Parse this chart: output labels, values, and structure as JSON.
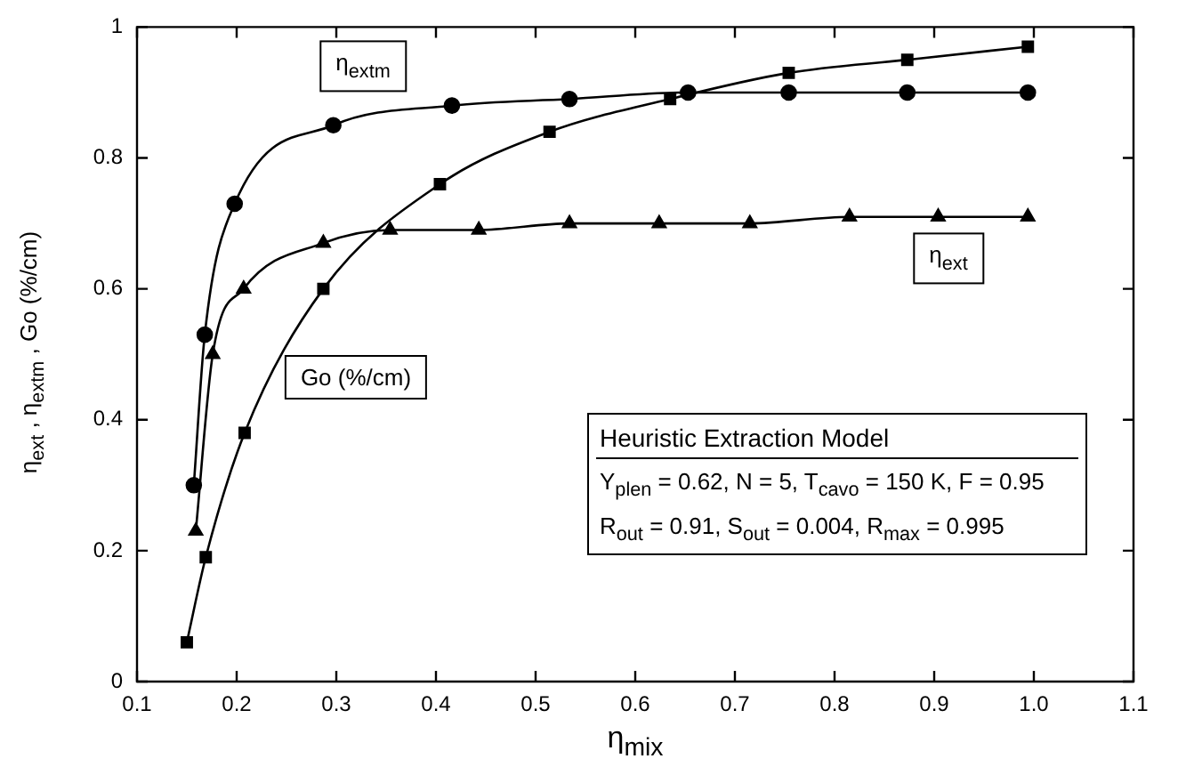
{
  "chart_data": {
    "type": "line",
    "xlabel": "η$_{mix}$",
    "ylabel": "η$_{ext}$ , η$_{extm}$ , Go (%/cm)",
    "xlim": [
      0.1,
      1.1
    ],
    "xticks": [
      0.1,
      0.2,
      0.3,
      0.4,
      0.5,
      0.6,
      0.7,
      0.8,
      0.9,
      {
        "value": 1,
        "label": "1.0"
      },
      1.1
    ],
    "ylim": [
      0,
      1
    ],
    "yticks": [
      0,
      0.2,
      0.4,
      0.6,
      0.8,
      1
    ],
    "grid": false,
    "line_style": "solid",
    "series": [
      {
        "name": "η$_{extm}$",
        "color": "#000000",
        "marker": "circle",
        "x": [
          0.157,
          0.168,
          0.198,
          0.297,
          0.416,
          0.534,
          0.653,
          0.754,
          0.873,
          0.994
        ],
        "values": [
          0.3,
          0.53,
          0.73,
          0.85,
          0.88,
          0.89,
          0.9,
          0.9,
          0.9,
          0.9
        ]
      },
      {
        "name": "Go (%/cm)",
        "color": "#000000",
        "marker": "square",
        "x": [
          0.15,
          0.169,
          0.208,
          0.287,
          0.404,
          0.514,
          0.635,
          0.754,
          0.873,
          0.994
        ],
        "values": [
          0.06,
          0.19,
          0.38,
          0.6,
          0.76,
          0.84,
          0.89,
          0.93,
          0.95,
          0.97
        ]
      },
      {
        "name": "η$_{ext}$",
        "color": "#000000",
        "marker": "triangle",
        "x": [
          0.159,
          0.176,
          0.207,
          0.287,
          0.354,
          0.443,
          0.534,
          0.624,
          0.715,
          0.815,
          0.904,
          0.994
        ],
        "values": [
          0.23,
          0.5,
          0.6,
          0.67,
          0.69,
          0.69,
          0.7,
          0.7,
          0.7,
          0.71,
          0.71,
          0.71
        ]
      }
    ],
    "annotations": [
      "Heuristic Extraction Model",
      "Y$_{plen}$ = 0.62, N = 5, T$_{cavo}$ = 150 K, F = 0.95",
      "R$_{out}$ = 0.91, S$_{out}$ = 0.004, R$_{max}$ = 0.995"
    ]
  }
}
